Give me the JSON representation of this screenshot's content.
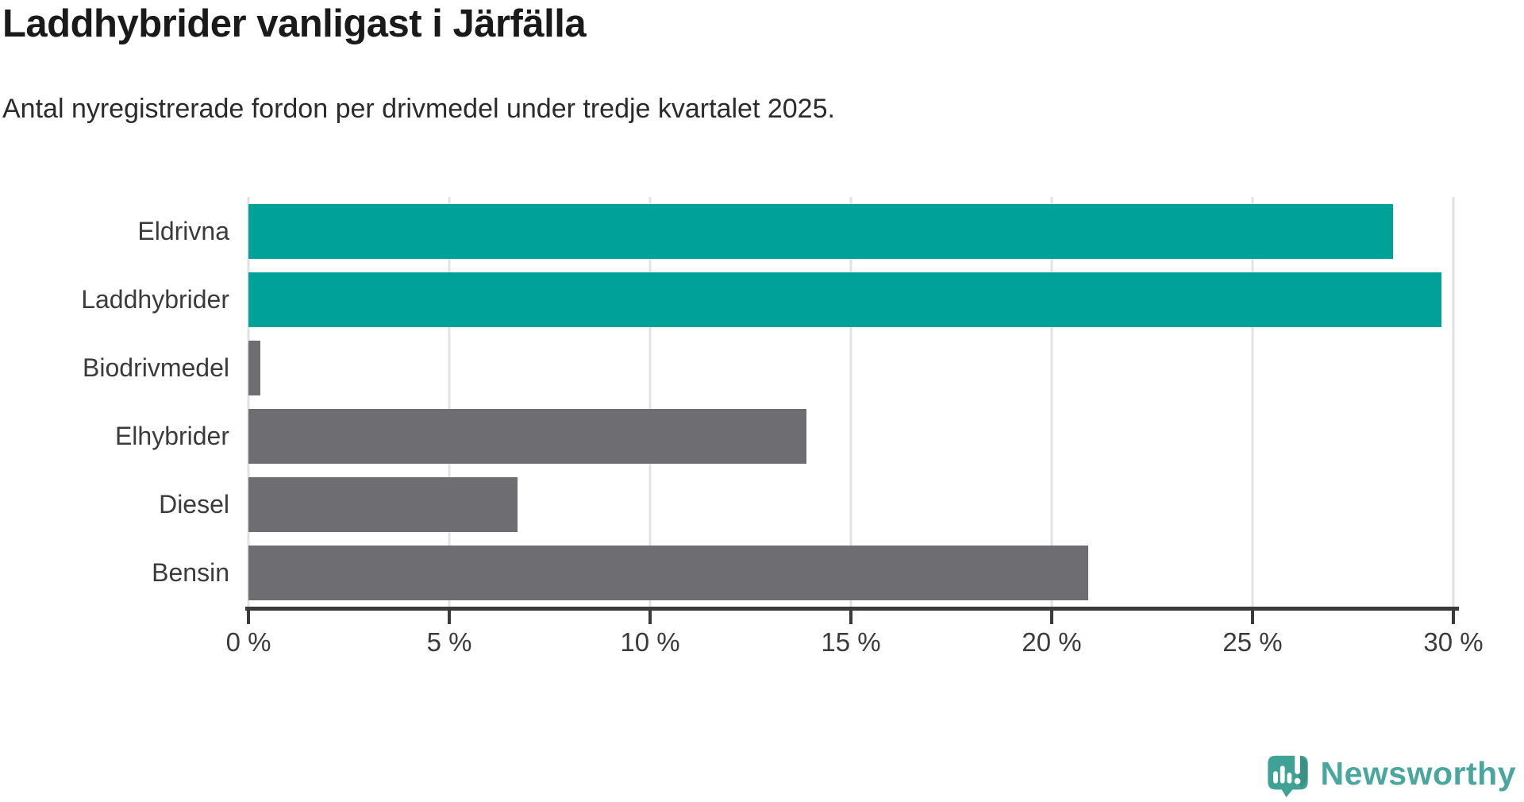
{
  "header": {
    "title": "Laddhybrider vanligast i Järfälla",
    "subtitle": "Antal nyregistrerade fordon per drivmedel under tredje kvartalet 2025."
  },
  "chart_data": {
    "type": "bar",
    "orientation": "horizontal",
    "title": "Laddhybrider vanligast i Järfälla",
    "subtitle": "Antal nyregistrerade fordon per drivmedel under tredje kvartalet 2025.",
    "categories": [
      "Eldrivna",
      "Laddhybrider",
      "Biodrivmedel",
      "Elhybrider",
      "Diesel",
      "Bensin"
    ],
    "values": [
      28.5,
      29.7,
      0.3,
      13.9,
      6.7,
      20.9
    ],
    "unit": "%",
    "bar_colors": [
      "#00a198",
      "#00a198",
      "#6d6d72",
      "#6d6d72",
      "#6d6d72",
      "#6d6d72"
    ],
    "highlight_color": "#00a198",
    "default_color": "#6d6d72",
    "xlabel": "",
    "ylabel": "",
    "xlim": [
      0,
      30
    ],
    "x_tick_values": [
      0,
      5,
      10,
      15,
      20,
      25,
      30
    ],
    "x_tick_labels": [
      "0 %",
      "5 %",
      "10 %",
      "15 %",
      "20 %",
      "25 %",
      "30 %"
    ],
    "grid": true,
    "legend": false
  },
  "footer": {
    "brand": "Newsworthy",
    "logo_bubble_color": "#3fa294",
    "logo_glyph_color": "#ffffff",
    "brand_text_color": "#4aa79f"
  }
}
